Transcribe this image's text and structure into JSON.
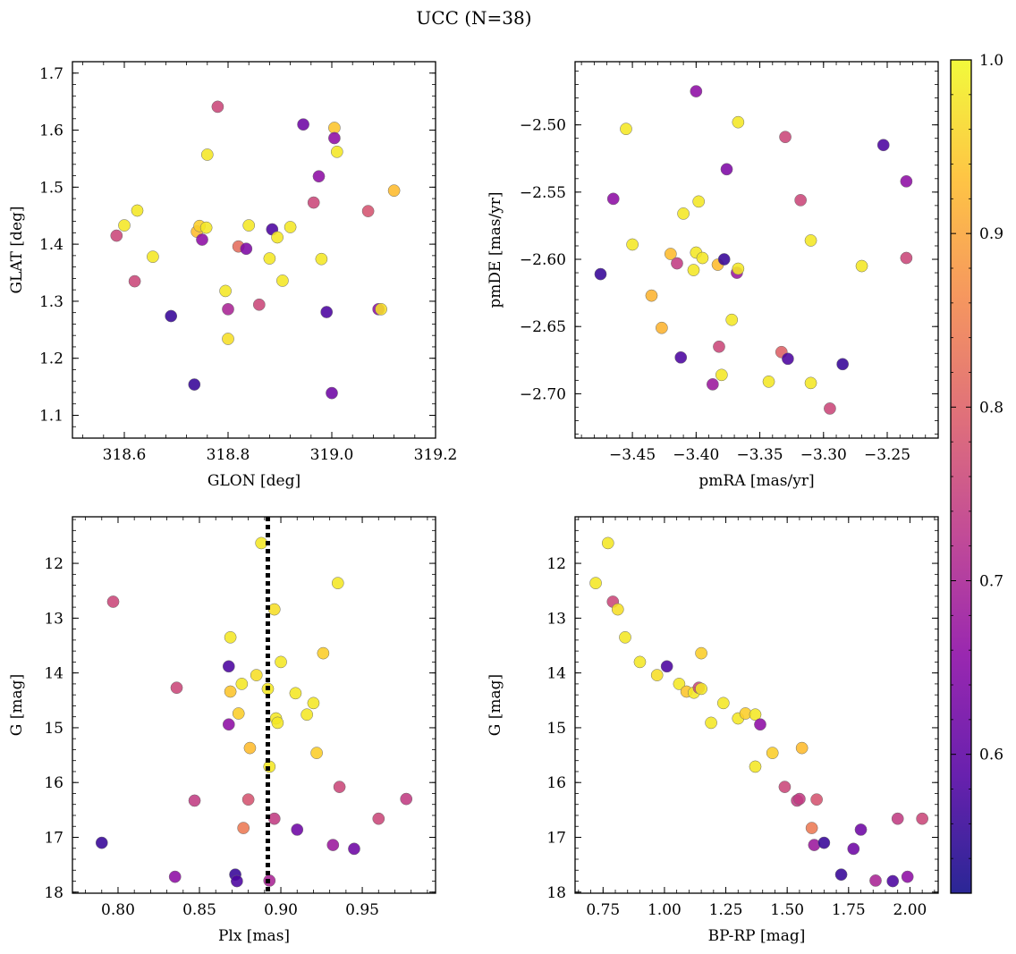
{
  "figure": {
    "suptitle": "UCC (N=38)"
  },
  "colorbar": {
    "cmap": "plasma",
    "range": [
      0.52,
      1.0
    ],
    "ticks": [
      0.6,
      0.7,
      0.8,
      0.9,
      1.0
    ],
    "tick_labels": [
      "0.6",
      "0.7",
      "0.8",
      "0.9",
      "1.0"
    ]
  },
  "chart_data": [
    {
      "type": "scatter",
      "xlabel": "GLON [deg]",
      "ylabel": "GLAT [deg]",
      "xlim": [
        318.5,
        319.2
      ],
      "ylim": [
        1.06,
        1.72
      ],
      "xticks": [
        318.6,
        318.8,
        319.0,
        319.2
      ],
      "xtick_labels": [
        "318.6",
        "318.8",
        "319.0",
        "319.2"
      ],
      "yticks": [
        1.1,
        1.2,
        1.3,
        1.4,
        1.5,
        1.6,
        1.7
      ],
      "ytick_labels": [
        "1.1",
        "1.2",
        "1.3",
        "1.4",
        "1.5",
        "1.6",
        "1.7"
      ],
      "points": [
        {
          "x": 318.585,
          "y": 1.415,
          "c": 0.76
        },
        {
          "x": 318.6,
          "y": 1.433,
          "c": 0.98
        },
        {
          "x": 318.62,
          "y": 1.335,
          "c": 0.76
        },
        {
          "x": 318.625,
          "y": 1.459,
          "c": 0.98
        },
        {
          "x": 318.655,
          "y": 1.378,
          "c": 0.98
        },
        {
          "x": 318.69,
          "y": 1.274,
          "c": 0.56
        },
        {
          "x": 318.735,
          "y": 1.154,
          "c": 0.56
        },
        {
          "x": 318.74,
          "y": 1.422,
          "c": 0.93
        },
        {
          "x": 318.745,
          "y": 1.432,
          "c": 0.95
        },
        {
          "x": 318.75,
          "y": 1.408,
          "c": 0.66
        },
        {
          "x": 318.758,
          "y": 1.429,
          "c": 0.98
        },
        {
          "x": 318.76,
          "y": 1.557,
          "c": 0.98
        },
        {
          "x": 318.78,
          "y": 1.641,
          "c": 0.76
        },
        {
          "x": 318.795,
          "y": 1.318,
          "c": 0.98
        },
        {
          "x": 318.8,
          "y": 1.234,
          "c": 0.97
        },
        {
          "x": 318.8,
          "y": 1.286,
          "c": 0.7
        },
        {
          "x": 318.82,
          "y": 1.396,
          "c": 0.82
        },
        {
          "x": 318.835,
          "y": 1.392,
          "c": 0.64
        },
        {
          "x": 318.84,
          "y": 1.433,
          "c": 0.98
        },
        {
          "x": 318.86,
          "y": 1.294,
          "c": 0.76
        },
        {
          "x": 318.88,
          "y": 1.375,
          "c": 0.98
        },
        {
          "x": 318.885,
          "y": 1.426,
          "c": 0.58
        },
        {
          "x": 318.895,
          "y": 1.412,
          "c": 0.98
        },
        {
          "x": 318.905,
          "y": 1.336,
          "c": 0.98
        },
        {
          "x": 318.92,
          "y": 1.43,
          "c": 0.98
        },
        {
          "x": 318.945,
          "y": 1.61,
          "c": 0.62
        },
        {
          "x": 318.965,
          "y": 1.473,
          "c": 0.76
        },
        {
          "x": 318.975,
          "y": 1.519,
          "c": 0.66
        },
        {
          "x": 318.98,
          "y": 1.374,
          "c": 0.98
        },
        {
          "x": 318.99,
          "y": 1.281,
          "c": 0.58
        },
        {
          "x": 319.0,
          "y": 1.139,
          "c": 0.62
        },
        {
          "x": 319.005,
          "y": 1.604,
          "c": 0.94
        },
        {
          "x": 319.005,
          "y": 1.586,
          "c": 0.66
        },
        {
          "x": 319.01,
          "y": 1.562,
          "c": 0.98
        },
        {
          "x": 319.07,
          "y": 1.458,
          "c": 0.78
        },
        {
          "x": 319.09,
          "y": 1.286,
          "c": 0.66
        },
        {
          "x": 319.095,
          "y": 1.286,
          "c": 0.97
        },
        {
          "x": 319.12,
          "y": 1.494,
          "c": 0.93
        }
      ]
    },
    {
      "type": "scatter",
      "xlabel": "pmRA [mas/yr]",
      "ylabel": "pmDE [mas/yr]",
      "xlim": [
        -3.495,
        -3.21
      ],
      "ylim": [
        -2.733,
        -2.453
      ],
      "xticks": [
        -3.45,
        -3.4,
        -3.35,
        -3.3,
        -3.25
      ],
      "xtick_labels": [
        "−3.45",
        "−3.40",
        "−3.35",
        "−3.30",
        "−3.25"
      ],
      "yticks": [
        -2.7,
        -2.65,
        -2.6,
        -2.55,
        -2.5
      ],
      "ytick_labels": [
        "−2.70",
        "−2.65",
        "−2.60",
        "−2.55",
        "−2.50"
      ],
      "points": [
        {
          "x": -3.475,
          "y": -2.611,
          "c": 0.56
        },
        {
          "x": -3.465,
          "y": -2.555,
          "c": 0.66
        },
        {
          "x": -3.455,
          "y": -2.503,
          "c": 0.98
        },
        {
          "x": -3.45,
          "y": -2.589,
          "c": 0.98
        },
        {
          "x": -3.435,
          "y": -2.627,
          "c": 0.92
        },
        {
          "x": -3.427,
          "y": -2.651,
          "c": 0.92
        },
        {
          "x": -3.42,
          "y": -2.596,
          "c": 0.93
        },
        {
          "x": -3.415,
          "y": -2.603,
          "c": 0.74
        },
        {
          "x": -3.412,
          "y": -2.673,
          "c": 0.58
        },
        {
          "x": -3.41,
          "y": -2.566,
          "c": 0.98
        },
        {
          "x": -3.402,
          "y": -2.608,
          "c": 0.98
        },
        {
          "x": -3.4,
          "y": -2.595,
          "c": 0.98
        },
        {
          "x": -3.4,
          "y": -2.475,
          "c": 0.66
        },
        {
          "x": -3.398,
          "y": -2.557,
          "c": 0.98
        },
        {
          "x": -3.395,
          "y": -2.599,
          "c": 0.98
        },
        {
          "x": -3.387,
          "y": -2.693,
          "c": 0.68
        },
        {
          "x": -3.383,
          "y": -2.604,
          "c": 0.93
        },
        {
          "x": -3.382,
          "y": -2.665,
          "c": 0.76
        },
        {
          "x": -3.38,
          "y": -2.686,
          "c": 0.98
        },
        {
          "x": -3.378,
          "y": -2.6,
          "c": 0.56
        },
        {
          "x": -3.376,
          "y": -2.533,
          "c": 0.64
        },
        {
          "x": -3.372,
          "y": -2.645,
          "c": 0.98
        },
        {
          "x": -3.368,
          "y": -2.61,
          "c": 0.68
        },
        {
          "x": -3.367,
          "y": -2.607,
          "c": 0.98
        },
        {
          "x": -3.367,
          "y": -2.498,
          "c": 0.98
        },
        {
          "x": -3.343,
          "y": -2.691,
          "c": 0.98
        },
        {
          "x": -3.333,
          "y": -2.669,
          "c": 0.8
        },
        {
          "x": -3.33,
          "y": -2.509,
          "c": 0.76
        },
        {
          "x": -3.328,
          "y": -2.674,
          "c": 0.58
        },
        {
          "x": -3.318,
          "y": -2.556,
          "c": 0.76
        },
        {
          "x": -3.31,
          "y": -2.586,
          "c": 0.98
        },
        {
          "x": -3.31,
          "y": -2.692,
          "c": 0.98
        },
        {
          "x": -3.295,
          "y": -2.711,
          "c": 0.76
        },
        {
          "x": -3.285,
          "y": -2.678,
          "c": 0.56
        },
        {
          "x": -3.27,
          "y": -2.605,
          "c": 0.98
        },
        {
          "x": -3.253,
          "y": -2.515,
          "c": 0.58
        },
        {
          "x": -3.235,
          "y": -2.542,
          "c": 0.66
        },
        {
          "x": -3.235,
          "y": -2.599,
          "c": 0.76
        }
      ]
    },
    {
      "type": "scatter",
      "xlabel": "Plx [mas]",
      "ylabel": "G [mag]",
      "xlim": [
        0.772,
        0.995
      ],
      "ylim": [
        18.02,
        11.15
      ],
      "y_inverted": true,
      "xticks": [
        0.8,
        0.85,
        0.9,
        0.95
      ],
      "xtick_labels": [
        "0.80",
        "0.85",
        "0.90",
        "0.95"
      ],
      "yticks": [
        12,
        13,
        14,
        15,
        16,
        17,
        18
      ],
      "ytick_labels": [
        "12",
        "13",
        "14",
        "15",
        "16",
        "17",
        "18"
      ],
      "vline": {
        "x": 0.892,
        "style": "dotted"
      },
      "points": [
        {
          "x": 0.79,
          "y": 17.1,
          "c": 0.56
        },
        {
          "x": 0.797,
          "y": 12.7,
          "c": 0.76
        },
        {
          "x": 0.835,
          "y": 17.72,
          "c": 0.66
        },
        {
          "x": 0.836,
          "y": 14.27,
          "c": 0.76
        },
        {
          "x": 0.847,
          "y": 16.33,
          "c": 0.74
        },
        {
          "x": 0.868,
          "y": 13.88,
          "c": 0.58
        },
        {
          "x": 0.868,
          "y": 14.94,
          "c": 0.66
        },
        {
          "x": 0.869,
          "y": 13.35,
          "c": 0.98
        },
        {
          "x": 0.869,
          "y": 14.34,
          "c": 0.94
        },
        {
          "x": 0.872,
          "y": 17.68,
          "c": 0.56
        },
        {
          "x": 0.873,
          "y": 17.8,
          "c": 0.58
        },
        {
          "x": 0.874,
          "y": 14.74,
          "c": 0.95
        },
        {
          "x": 0.876,
          "y": 14.2,
          "c": 0.98
        },
        {
          "x": 0.877,
          "y": 16.83,
          "c": 0.84
        },
        {
          "x": 0.88,
          "y": 16.31,
          "c": 0.78
        },
        {
          "x": 0.881,
          "y": 15.37,
          "c": 0.93
        },
        {
          "x": 0.885,
          "y": 14.04,
          "c": 0.97
        },
        {
          "x": 0.888,
          "y": 11.63,
          "c": 0.98
        },
        {
          "x": 0.892,
          "y": 14.29,
          "c": 0.98
        },
        {
          "x": 0.893,
          "y": 15.71,
          "c": 0.98
        },
        {
          "x": 0.893,
          "y": 17.79,
          "c": 0.7
        },
        {
          "x": 0.896,
          "y": 12.84,
          "c": 0.97
        },
        {
          "x": 0.896,
          "y": 16.66,
          "c": 0.74
        },
        {
          "x": 0.897,
          "y": 14.83,
          "c": 0.98
        },
        {
          "x": 0.898,
          "y": 14.91,
          "c": 0.98
        },
        {
          "x": 0.9,
          "y": 13.8,
          "c": 0.98
        },
        {
          "x": 0.909,
          "y": 14.37,
          "c": 0.98
        },
        {
          "x": 0.91,
          "y": 16.86,
          "c": 0.62
        },
        {
          "x": 0.916,
          "y": 14.76,
          "c": 0.98
        },
        {
          "x": 0.92,
          "y": 14.55,
          "c": 0.98
        },
        {
          "x": 0.922,
          "y": 15.46,
          "c": 0.95
        },
        {
          "x": 0.926,
          "y": 13.64,
          "c": 0.95
        },
        {
          "x": 0.932,
          "y": 17.14,
          "c": 0.68
        },
        {
          "x": 0.935,
          "y": 12.36,
          "c": 0.98
        },
        {
          "x": 0.936,
          "y": 16.08,
          "c": 0.76
        },
        {
          "x": 0.945,
          "y": 17.21,
          "c": 0.62
        },
        {
          "x": 0.96,
          "y": 16.66,
          "c": 0.76
        },
        {
          "x": 0.977,
          "y": 16.3,
          "c": 0.74
        }
      ]
    },
    {
      "type": "scatter",
      "xlabel": "BP-RP [mag]",
      "ylabel": "G [mag]",
      "xlim": [
        0.636,
        2.115
      ],
      "ylim": [
        18.02,
        11.15
      ],
      "y_inverted": true,
      "xticks": [
        0.75,
        1.0,
        1.25,
        1.5,
        1.75,
        2.0
      ],
      "xtick_labels": [
        "0.75",
        "1.00",
        "1.25",
        "1.50",
        "1.75",
        "2.00"
      ],
      "yticks": [
        12,
        13,
        14,
        15,
        16,
        17,
        18
      ],
      "ytick_labels": [
        "12",
        "13",
        "14",
        "15",
        "16",
        "17",
        "18"
      ],
      "points": [
        {
          "x": 0.72,
          "y": 12.36,
          "c": 0.98
        },
        {
          "x": 0.77,
          "y": 11.63,
          "c": 0.98
        },
        {
          "x": 0.79,
          "y": 12.7,
          "c": 0.76
        },
        {
          "x": 0.81,
          "y": 12.84,
          "c": 0.97
        },
        {
          "x": 0.84,
          "y": 13.35,
          "c": 0.98
        },
        {
          "x": 0.9,
          "y": 13.8,
          "c": 0.98
        },
        {
          "x": 0.97,
          "y": 14.04,
          "c": 0.97
        },
        {
          "x": 1.01,
          "y": 13.88,
          "c": 0.58
        },
        {
          "x": 1.06,
          "y": 14.2,
          "c": 0.98
        },
        {
          "x": 1.09,
          "y": 14.34,
          "c": 0.94
        },
        {
          "x": 1.12,
          "y": 14.36,
          "c": 0.98
        },
        {
          "x": 1.14,
          "y": 14.27,
          "c": 0.76
        },
        {
          "x": 1.15,
          "y": 14.29,
          "c": 0.98
        },
        {
          "x": 1.15,
          "y": 13.64,
          "c": 0.95
        },
        {
          "x": 1.19,
          "y": 14.91,
          "c": 0.98
        },
        {
          "x": 1.24,
          "y": 14.55,
          "c": 0.98
        },
        {
          "x": 1.3,
          "y": 14.83,
          "c": 0.98
        },
        {
          "x": 1.33,
          "y": 14.74,
          "c": 0.95
        },
        {
          "x": 1.37,
          "y": 14.76,
          "c": 0.98
        },
        {
          "x": 1.37,
          "y": 15.71,
          "c": 0.98
        },
        {
          "x": 1.39,
          "y": 14.94,
          "c": 0.66
        },
        {
          "x": 1.44,
          "y": 15.46,
          "c": 0.95
        },
        {
          "x": 1.49,
          "y": 16.08,
          "c": 0.76
        },
        {
          "x": 1.54,
          "y": 16.33,
          "c": 0.74
        },
        {
          "x": 1.55,
          "y": 16.3,
          "c": 0.74
        },
        {
          "x": 1.56,
          "y": 15.37,
          "c": 0.93
        },
        {
          "x": 1.6,
          "y": 16.83,
          "c": 0.84
        },
        {
          "x": 1.61,
          "y": 17.14,
          "c": 0.68
        },
        {
          "x": 1.62,
          "y": 16.31,
          "c": 0.78
        },
        {
          "x": 1.65,
          "y": 17.1,
          "c": 0.56
        },
        {
          "x": 1.72,
          "y": 17.68,
          "c": 0.56
        },
        {
          "x": 1.77,
          "y": 17.21,
          "c": 0.62
        },
        {
          "x": 1.8,
          "y": 16.86,
          "c": 0.62
        },
        {
          "x": 1.86,
          "y": 17.79,
          "c": 0.7
        },
        {
          "x": 1.93,
          "y": 17.8,
          "c": 0.58
        },
        {
          "x": 1.95,
          "y": 16.66,
          "c": 0.74
        },
        {
          "x": 1.99,
          "y": 17.72,
          "c": 0.66
        },
        {
          "x": 2.05,
          "y": 16.66,
          "c": 0.76
        }
      ]
    }
  ]
}
